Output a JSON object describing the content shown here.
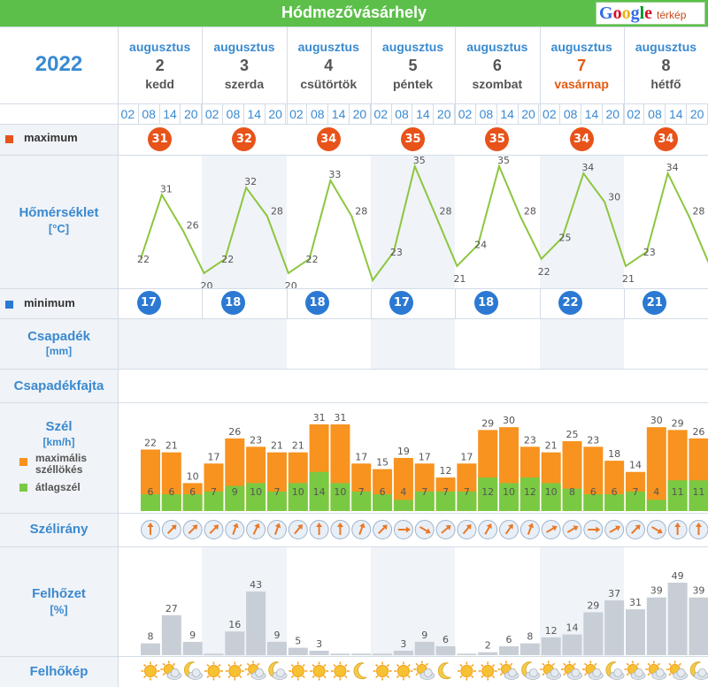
{
  "header": {
    "title": "Hódmezővásárhely",
    "map_brand": "Google",
    "map_label": "térkép"
  },
  "year": "2022",
  "days": [
    {
      "month": "augusztus",
      "day": "2",
      "weekday": "kedd"
    },
    {
      "month": "augusztus",
      "day": "3",
      "weekday": "szerda"
    },
    {
      "month": "augusztus",
      "day": "4",
      "weekday": "csütörtök"
    },
    {
      "month": "augusztus",
      "day": "5",
      "weekday": "péntek"
    },
    {
      "month": "augusztus",
      "day": "6",
      "weekday": "szombat"
    },
    {
      "month": "augusztus",
      "day": "7",
      "weekday": "vasárnap"
    },
    {
      "month": "augusztus",
      "day": "8",
      "weekday": "hétfő"
    }
  ],
  "hours": [
    "02",
    "08",
    "14",
    "20"
  ],
  "labels": {
    "maximum": "maximum",
    "minimum": "minimum",
    "temperature": "Hőmérséklet",
    "temperature_unit": "[°C]",
    "precip": "Csapadék",
    "precip_unit": "[mm]",
    "precip_type": "Csapadékfajta",
    "wind": "Szél",
    "wind_unit": "[km/h]",
    "gust_legend": "maximális széllökés",
    "avg_legend": "átlagszél",
    "wind_dir": "Szélirány",
    "cloud": "Felhőzet",
    "cloud_unit": "[%]",
    "cloud_image": "Felhőkép"
  },
  "colors": {
    "max": "#e8531a",
    "min": "#2b79d3",
    "temp_line": "#8cc63f",
    "gust": "#f7931e",
    "avg": "#7ac943",
    "cloud": "#c8ced6"
  },
  "chart_data": {
    "daily_max": [
      31,
      32,
      34,
      35,
      35,
      34,
      34
    ],
    "daily_min": [
      17,
      18,
      18,
      17,
      18,
      22,
      21
    ],
    "temperature": [
      22,
      31,
      26,
      20,
      22,
      32,
      28,
      20,
      22,
      33,
      28,
      19,
      23,
      35,
      28,
      21,
      24,
      35,
      28,
      22,
      25,
      34,
      30,
      21,
      23,
      34,
      28,
      21
    ],
    "temperature_labels": [
      "22",
      "31",
      "26",
      "20",
      "22",
      "32",
      "28",
      "20",
      "22",
      "33",
      "28",
      "19",
      "23",
      "35",
      "28",
      "21",
      "24",
      "35",
      "28",
      "22",
      "25",
      "34",
      "30",
      "21",
      "23",
      "34",
      "28",
      ""
    ],
    "wind_gust": [
      22,
      21,
      10,
      17,
      26,
      23,
      21,
      21,
      31,
      31,
      17,
      15,
      19,
      17,
      12,
      17,
      29,
      30,
      23,
      21,
      25,
      23,
      18,
      14,
      30,
      29,
      26
    ],
    "wind_avg": [
      6,
      6,
      6,
      7,
      9,
      10,
      7,
      10,
      14,
      10,
      7,
      6,
      4,
      7,
      7,
      7,
      12,
      10,
      12,
      10,
      8,
      6,
      6,
      7,
      4,
      11,
      11
    ],
    "wind_dir_deg": [
      180,
      225,
      225,
      225,
      200,
      205,
      200,
      220,
      180,
      180,
      200,
      225,
      270,
      300,
      230,
      220,
      210,
      215,
      200,
      240,
      240,
      270,
      240,
      225,
      300,
      180,
      180
    ],
    "cloud": [
      8,
      27,
      9,
      1,
      16,
      43,
      9,
      5,
      3,
      1,
      1,
      1,
      3,
      9,
      6,
      1,
      2,
      6,
      8,
      12,
      14,
      29,
      37,
      31,
      39,
      49,
      39
    ],
    "cloud_labels": [
      "8",
      "27",
      "9",
      "",
      "16",
      "43",
      "9",
      "5",
      "3",
      "",
      "",
      "",
      "3",
      "9",
      "6",
      "",
      "2",
      "6",
      "8",
      "12",
      "14",
      "29",
      "37",
      "31",
      "39",
      "49",
      "39"
    ],
    "cloud_icons": [
      "sun",
      "sun-cloud",
      "moon-cloud",
      "sun",
      "sun",
      "sun-cloud",
      "moon-cloud",
      "sun",
      "sun",
      "sun",
      "moon",
      "sun",
      "sun",
      "sun-cloud",
      "moon",
      "sun",
      "sun",
      "sun-cloud",
      "moon-cloud",
      "sun-cloud",
      "sun-cloud",
      "sun-cloud",
      "moon-cloud",
      "sun-cloud",
      "sun-cloud",
      "sun-cloud",
      "moon-cloud"
    ]
  }
}
